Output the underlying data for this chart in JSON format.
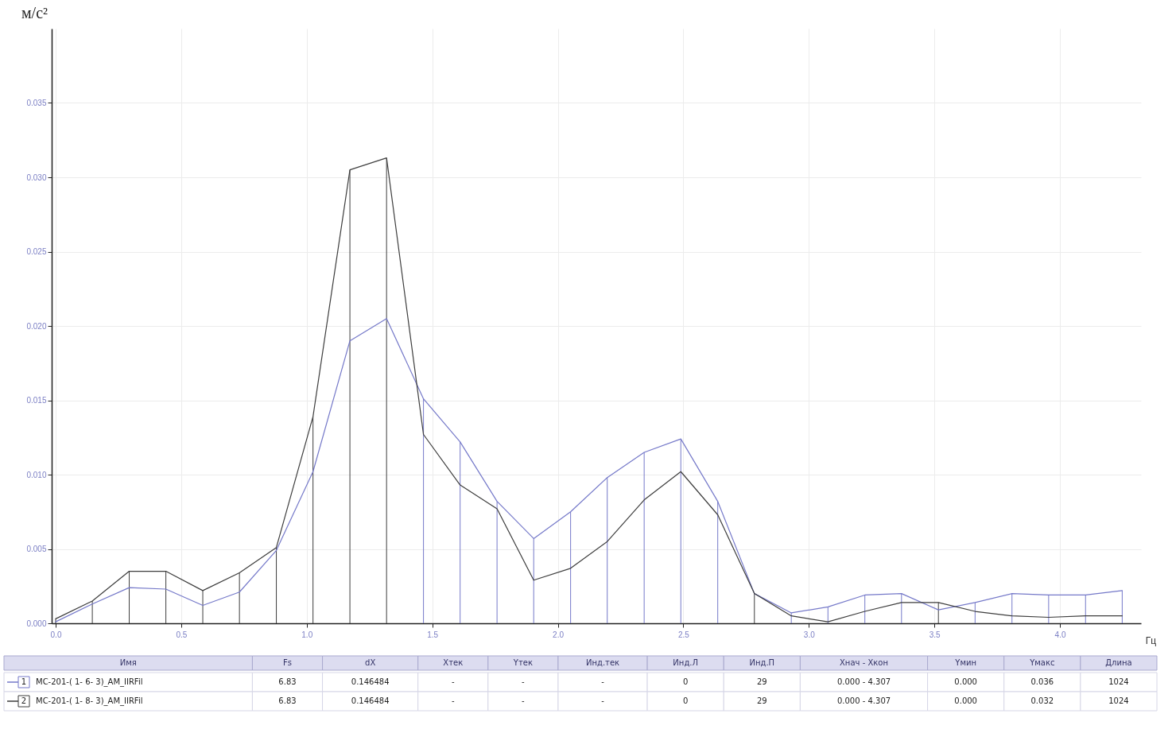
{
  "chart_data": {
    "type": "line",
    "xlabel": "Гц",
    "ylabel": "м/с²",
    "x": [
      0,
      0.146,
      0.293,
      0.439,
      0.586,
      0.732,
      0.879,
      1.025,
      1.172,
      1.318,
      1.465,
      1.611,
      1.758,
      1.904,
      2.051,
      2.197,
      2.344,
      2.49,
      2.637,
      2.783,
      2.93,
      3.076,
      3.223,
      3.369,
      3.516,
      3.662,
      3.809,
      3.955,
      4.102,
      4.248
    ],
    "series": [
      {
        "type": "bar",
        "colors": [
          "#3d3d3d",
          "#3d3d3d",
          "#3d3d3d",
          "#3d3d3d",
          "#3d3d3d",
          "#3d3d3d",
          "#3d3d3d",
          "#3d3d3d",
          "#3d3d3d",
          "#3d3d3d",
          "#7579c9",
          "#7579c9",
          "#7579c9",
          "#7579c9",
          "#7579c9",
          "#7579c9",
          "#7579c9",
          "#7579c9",
          "#7579c9",
          "#3d3d3d",
          "#7579c9",
          "#7579c9",
          "#7579c9",
          "#7579c9",
          "#3d3d3d",
          "#7579c9",
          "#7579c9",
          "#7579c9",
          "#7579c9",
          "#7579c9"
        ],
        "values": [
          0.0003,
          0.0015,
          0.0035,
          0.0035,
          0.0022,
          0.0034,
          0.0051,
          0.0139,
          0.0305,
          0.0313,
          0.0151,
          0.0122,
          0.0082,
          0.0057,
          0.0075,
          0.0098,
          0.0115,
          0.0124,
          0.0082,
          0.002,
          0.0007,
          0.0011,
          0.0019,
          0.002,
          0.0014,
          0.0014,
          0.002,
          0.0019,
          0.0019,
          0.0022
        ]
      },
      {
        "name": "MC-201-( 1- 6- 3)_AM_IIRFil",
        "color": "#7579c9",
        "values": [
          0.0001,
          0.0013,
          0.0024,
          0.0023,
          0.0012,
          0.0021,
          0.0049,
          0.0102,
          0.019,
          0.0205,
          0.0151,
          0.0122,
          0.0082,
          0.0057,
          0.0075,
          0.0098,
          0.0115,
          0.0124,
          0.0082,
          0.002,
          0.0007,
          0.0011,
          0.0019,
          0.002,
          0.0009,
          0.0014,
          0.002,
          0.0019,
          0.0019,
          0.0022
        ]
      },
      {
        "name": "MC-201-( 1- 8- 3)_AM_IIRFil",
        "color": "#3d3d3d",
        "values": [
          0.0003,
          0.0015,
          0.0035,
          0.0035,
          0.0022,
          0.0034,
          0.0051,
          0.0139,
          0.0305,
          0.0313,
          0.0127,
          0.0093,
          0.0077,
          0.0029,
          0.0037,
          0.0055,
          0.0083,
          0.0102,
          0.0073,
          0.002,
          0.0005,
          0.0001,
          0.0008,
          0.0014,
          0.0014,
          0.0008,
          0.0005,
          0.0004,
          0.0005,
          0.0005
        ]
      }
    ],
    "xlim": [
      0,
      4.307
    ],
    "ylim": [
      0,
      0.04
    ],
    "xticks": [
      {
        "value": 0,
        "label": "0.0"
      },
      0.5,
      {
        "value": 1,
        "label": "1.0"
      },
      1.5,
      {
        "value": 2,
        "label": "2.0"
      },
      2.5,
      {
        "value": 3,
        "label": "3.0"
      },
      3.5,
      {
        "value": 4,
        "label": "4.0"
      }
    ],
    "yticks": [
      {
        "value": 0,
        "label": "0.000"
      },
      {
        "value": 0.005,
        "label": "0.005"
      },
      {
        "value": 0.01,
        "label": "0.010"
      },
      {
        "value": 0.015,
        "label": "0.015"
      },
      {
        "value": 0.02,
        "label": "0.020"
      },
      {
        "value": 0.025,
        "label": "0.025"
      },
      {
        "value": 0.03,
        "label": "0.030"
      },
      {
        "value": 0.035,
        "label": "0.035"
      }
    ],
    "grid": true,
    "legend": "bottom",
    "annotations": [
      "Имя",
      "Fs",
      "dX",
      "Xтек",
      "Yтек",
      "Инд.тек",
      "Инд.Л",
      "Инд.П",
      "Xнач - Xкон",
      "Yмин",
      "Yмакс",
      "Длина",
      "1",
      "6.83",
      "0.146484",
      "-",
      "-",
      "-",
      "0",
      "29",
      "0.000 - 4.307",
      "0.000",
      "0.036",
      "1024",
      "2",
      "6.83",
      "0.146484",
      "-",
      "-",
      "-",
      "0",
      "29",
      "0.000 - 4.307",
      "0.000",
      "0.032",
      "1024"
    ]
  }
}
